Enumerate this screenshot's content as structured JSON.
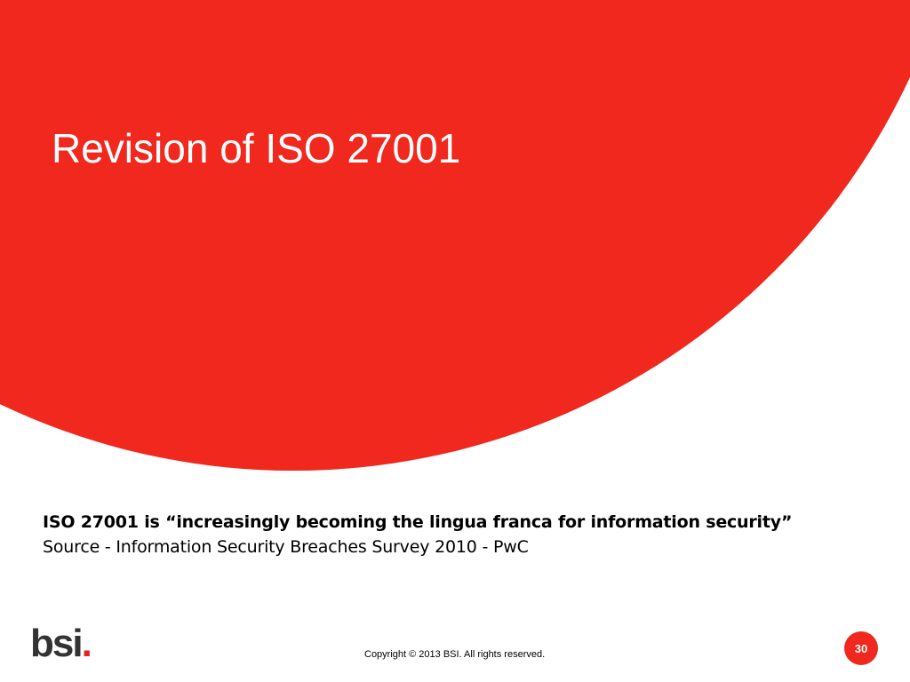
{
  "slide": {
    "title": "Revision of ISO 27001",
    "quote": "ISO 27001 is “increasingly becoming the lingua franca for information security”",
    "source": "Source - Information Security Breaches Survey 2010 - PwC",
    "logo": {
      "text": "bsi",
      "dot": "."
    },
    "copyright": "Copyright © 2013 BSI. All rights reserved.",
    "page_number": "30"
  }
}
